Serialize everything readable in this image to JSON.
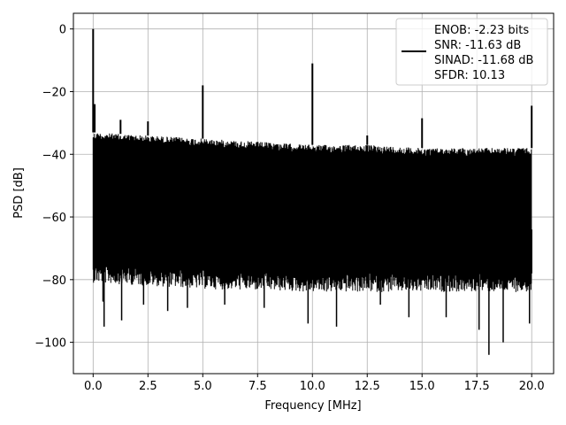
{
  "chart_data": {
    "type": "line",
    "xlabel": "Frequency [MHz]",
    "ylabel": "PSD [dB]",
    "xlim": [
      -0.9,
      21.0
    ],
    "ylim": [
      -110,
      5
    ],
    "xticks": [
      0,
      2.5,
      5,
      7.5,
      10,
      12.5,
      15,
      17.5,
      20
    ],
    "xtick_labels": [
      "0.0",
      "2.5",
      "5.0",
      "7.5",
      "10.0",
      "12.5",
      "15.0",
      "17.5",
      "20.0"
    ],
    "yticks": [
      0,
      -20,
      -40,
      -60,
      -80,
      -100
    ],
    "ytick_labels": [
      "0",
      "−20",
      "−40",
      "−60",
      "−80",
      "−100"
    ],
    "grid": true,
    "legend_position": "upper right",
    "legend": [
      "ENOB: -2.23 bits",
      "SNR: -11.63 dB",
      "SINAD: -11.68 dB",
      "SFDR: 10.13"
    ],
    "line_color": "#000000",
    "series": [
      {
        "noise_floor_top": [
          [
            0,
            -33
          ],
          [
            2.5,
            -34
          ],
          [
            5,
            -35
          ],
          [
            7.5,
            -36
          ],
          [
            10,
            -37
          ],
          [
            12.5,
            -37
          ],
          [
            15,
            -38
          ],
          [
            17.5,
            -38
          ],
          [
            20,
            -38
          ]
        ],
        "noise_floor_bottom": [
          [
            0,
            -75
          ],
          [
            5,
            -77
          ],
          [
            10,
            -78
          ],
          [
            15,
            -78
          ],
          [
            20,
            -78
          ]
        ],
        "peaks": [
          {
            "x": 0.0,
            "y": 0
          },
          {
            "x": 0.07,
            "y": -24
          },
          {
            "x": 1.25,
            "y": -29
          },
          {
            "x": 2.5,
            "y": -29.5
          },
          {
            "x": 5.0,
            "y": -18
          },
          {
            "x": 10.0,
            "y": -11
          },
          {
            "x": 12.5,
            "y": -34
          },
          {
            "x": 15.0,
            "y": -28.5
          },
          {
            "x": 20.0,
            "y": -24.5
          }
        ],
        "dips": [
          {
            "x": 0.15,
            "y": -63
          },
          {
            "x": 0.45,
            "y": -87
          },
          {
            "x": 0.5,
            "y": -95
          },
          {
            "x": 1.3,
            "y": -93
          },
          {
            "x": 2.3,
            "y": -88
          },
          {
            "x": 3.4,
            "y": -90
          },
          {
            "x": 4.3,
            "y": -89
          },
          {
            "x": 6.0,
            "y": -88
          },
          {
            "x": 7.8,
            "y": -89
          },
          {
            "x": 9.8,
            "y": -94
          },
          {
            "x": 11.1,
            "y": -95
          },
          {
            "x": 13.1,
            "y": -88
          },
          {
            "x": 14.4,
            "y": -92
          },
          {
            "x": 16.1,
            "y": -92
          },
          {
            "x": 17.6,
            "y": -96
          },
          {
            "x": 18.05,
            "y": -104
          },
          {
            "x": 18.7,
            "y": -100
          },
          {
            "x": 19.9,
            "y": -94
          },
          {
            "x": 20.0,
            "y": -64
          }
        ]
      }
    ]
  }
}
